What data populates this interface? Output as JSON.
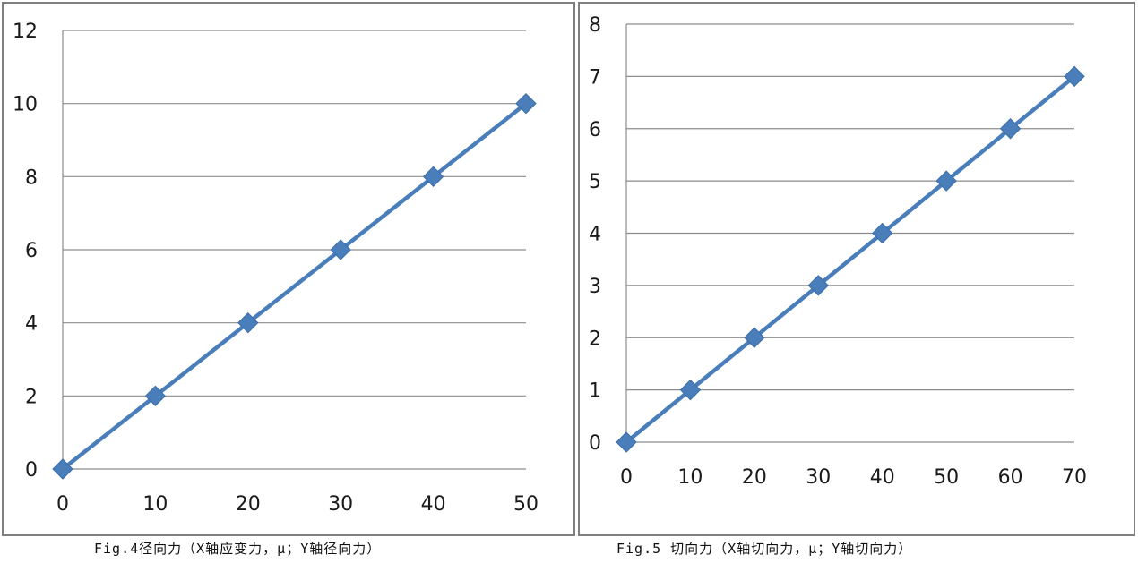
{
  "charts": {
    "fig4": {
      "caption": "Fig.4径向力（X轴应变力，μ；Y轴径向力）"
    },
    "fig5": {
      "caption": "Fig.5 切向力（X轴切向力，μ；Y轴切向力）"
    }
  },
  "colors": {
    "series": "#4a7ebb",
    "grid": "#8c8c8c",
    "frame": "#7f7f7f"
  },
  "chart_data": [
    {
      "type": "line",
      "title": "",
      "xlabel": "",
      "ylabel": "",
      "x": [
        0,
        10,
        20,
        30,
        40,
        50
      ],
      "series": [
        {
          "values": [
            0,
            2,
            4,
            6,
            8,
            10
          ]
        }
      ],
      "xticks": [
        0,
        10,
        20,
        30,
        40,
        50
      ],
      "yticks": [
        0,
        2,
        4,
        6,
        8,
        10,
        12
      ],
      "xlim": [
        0,
        50
      ],
      "ylim": [
        0,
        12
      ],
      "grid": "horizontal",
      "marker": "diamond"
    },
    {
      "type": "line",
      "title": "",
      "xlabel": "",
      "ylabel": "",
      "x": [
        0,
        10,
        20,
        30,
        40,
        50,
        60,
        70
      ],
      "series": [
        {
          "values": [
            0,
            1,
            2,
            3,
            4,
            5,
            6,
            7
          ]
        }
      ],
      "xticks": [
        0,
        10,
        20,
        30,
        40,
        50,
        60,
        70
      ],
      "yticks": [
        0,
        1,
        2,
        3,
        4,
        5,
        6,
        7,
        8
      ],
      "xlim": [
        0,
        70
      ],
      "ylim": [
        0,
        8
      ],
      "grid": "horizontal",
      "marker": "diamond"
    }
  ]
}
